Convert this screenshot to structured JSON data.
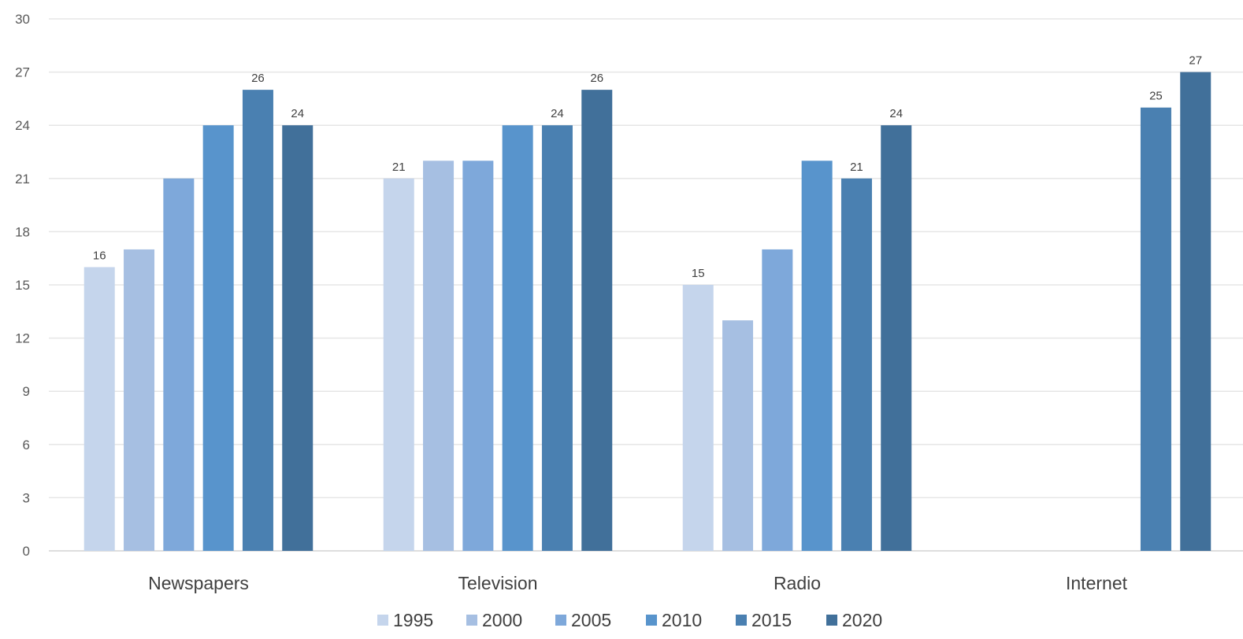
{
  "chart_data": {
    "type": "bar",
    "title": "",
    "xlabel": "",
    "ylabel": "",
    "ylim": [
      0,
      30
    ],
    "yticks": [
      0,
      3,
      6,
      9,
      12,
      15,
      18,
      21,
      24,
      27,
      30
    ],
    "grid": true,
    "legend_position": "bottom",
    "categories": [
      "Newspapers",
      "Television",
      "Radio",
      "Internet"
    ],
    "series": [
      {
        "name": "1995",
        "color": "#c5d5ec",
        "values": [
          16,
          21,
          15,
          null
        ],
        "labels": [
          "16",
          "21",
          "15",
          null
        ]
      },
      {
        "name": "2000",
        "color": "#a6bfe2",
        "values": [
          17,
          22,
          13,
          null
        ],
        "labels": [
          null,
          null,
          null,
          null
        ]
      },
      {
        "name": "2005",
        "color": "#7ea8da",
        "values": [
          21,
          22,
          17,
          null
        ],
        "labels": [
          null,
          null,
          null,
          null
        ]
      },
      {
        "name": "2010",
        "color": "#5894cc",
        "values": [
          24,
          24,
          22,
          null
        ],
        "labels": [
          null,
          null,
          null,
          null
        ]
      },
      {
        "name": "2015",
        "color": "#4a80b1",
        "values": [
          26,
          24,
          21,
          25
        ],
        "labels": [
          "26",
          "24",
          "21",
          "25"
        ]
      },
      {
        "name": "2020",
        "color": "#41709a",
        "values": [
          24,
          26,
          24,
          27
        ],
        "labels": [
          "24",
          "26",
          "24",
          "27"
        ]
      }
    ]
  }
}
